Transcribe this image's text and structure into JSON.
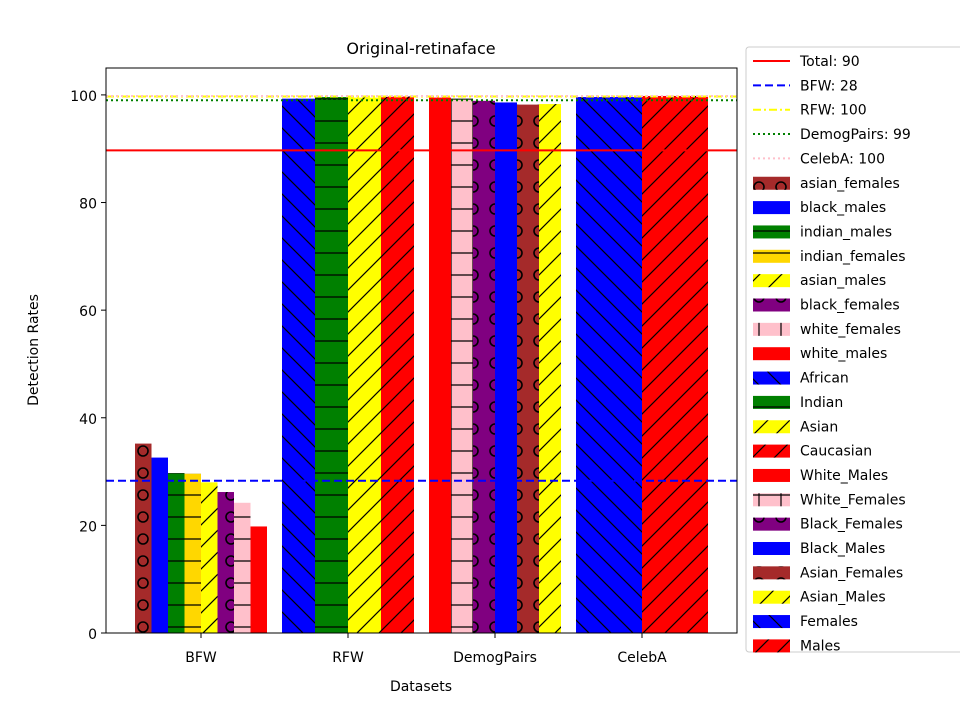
{
  "chart_data": {
    "type": "bar",
    "title": "Original-retinaface",
    "xlabel": "Datasets",
    "ylabel": "Detection Rates",
    "ylim": [
      0,
      105
    ],
    "yticks": [
      0,
      20,
      40,
      60,
      80,
      100
    ],
    "categories": [
      "BFW",
      "RFW",
      "DemogPairs",
      "CelebA"
    ],
    "legend_position": "outside-right",
    "reference_lines": [
      {
        "label": "Total: 90",
        "value": 89.7,
        "color": "#ff0000",
        "style": "solid"
      },
      {
        "label": "BFW: 28",
        "value": 28.3,
        "color": "#0000ff",
        "style": "dashed"
      },
      {
        "label": "RFW: 100",
        "value": 99.7,
        "color": "#ffff00",
        "style": "dashdot"
      },
      {
        "label": "DemogPairs: 99",
        "value": 99.0,
        "color": "#008000",
        "style": "dotted"
      },
      {
        "label": "CelebA: 100",
        "value": 99.8,
        "color": "#ffc0cb",
        "style": "dotted"
      }
    ],
    "groups": [
      {
        "category": "BFW",
        "bars": [
          {
            "series": "asian_females",
            "value": 35.2
          },
          {
            "series": "black_males",
            "value": 32.6
          },
          {
            "series": "indian_males",
            "value": 29.7
          },
          {
            "series": "indian_females",
            "value": 29.6
          },
          {
            "series": "asian_males",
            "value": 28.0
          },
          {
            "series": "black_females",
            "value": 26.2
          },
          {
            "series": "white_females",
            "value": 24.2
          },
          {
            "series": "white_males",
            "value": 19.8
          }
        ]
      },
      {
        "category": "RFW",
        "bars": [
          {
            "series": "African",
            "value": 99.3
          },
          {
            "series": "Indian",
            "value": 99.6
          },
          {
            "series": "Asian",
            "value": 99.5
          },
          {
            "series": "Caucasian",
            "value": 99.7
          }
        ]
      },
      {
        "category": "DemogPairs",
        "bars": [
          {
            "series": "White_Males",
            "value": 99.5
          },
          {
            "series": "White_Females",
            "value": 99.3
          },
          {
            "series": "Black_Females",
            "value": 98.9
          },
          {
            "series": "Black_Males",
            "value": 98.6
          },
          {
            "series": "Asian_Females",
            "value": 98.2
          },
          {
            "series": "Asian_Males",
            "value": 98.3
          }
        ]
      },
      {
        "category": "CelebA",
        "bars": [
          {
            "series": "Females",
            "value": 99.6
          },
          {
            "series": "Males",
            "value": 99.8
          }
        ]
      }
    ],
    "series": [
      {
        "name": "asian_females",
        "color": "#a52a2a",
        "hatch": "circle"
      },
      {
        "name": "black_males",
        "color": "#0000ff",
        "hatch": "none"
      },
      {
        "name": "indian_males",
        "color": "#008000",
        "hatch": "hline"
      },
      {
        "name": "indian_females",
        "color": "#ffd700",
        "hatch": "hline"
      },
      {
        "name": "asian_males",
        "color": "#ffff00",
        "hatch": "slash"
      },
      {
        "name": "black_females",
        "color": "#800080",
        "hatch": "circle"
      },
      {
        "name": "white_females",
        "color": "#ffc0cb",
        "hatch": "plus"
      },
      {
        "name": "white_males",
        "color": "#ff0000",
        "hatch": "none"
      },
      {
        "name": "African",
        "color": "#0000ff",
        "hatch": "backslash"
      },
      {
        "name": "Indian",
        "color": "#008000",
        "hatch": "hline"
      },
      {
        "name": "Asian",
        "color": "#ffff00",
        "hatch": "slash"
      },
      {
        "name": "Caucasian",
        "color": "#ff0000",
        "hatch": "slash"
      },
      {
        "name": "White_Males",
        "color": "#ff0000",
        "hatch": "none"
      },
      {
        "name": "White_Females",
        "color": "#ffc0cb",
        "hatch": "plus"
      },
      {
        "name": "Black_Females",
        "color": "#800080",
        "hatch": "circle"
      },
      {
        "name": "Black_Males",
        "color": "#0000ff",
        "hatch": "none"
      },
      {
        "name": "Asian_Females",
        "color": "#a52a2a",
        "hatch": "circle"
      },
      {
        "name": "Asian_Males",
        "color": "#ffff00",
        "hatch": "slash"
      },
      {
        "name": "Females",
        "color": "#0000ff",
        "hatch": "backslash"
      },
      {
        "name": "Males",
        "color": "#ff0000",
        "hatch": "slash"
      }
    ]
  }
}
